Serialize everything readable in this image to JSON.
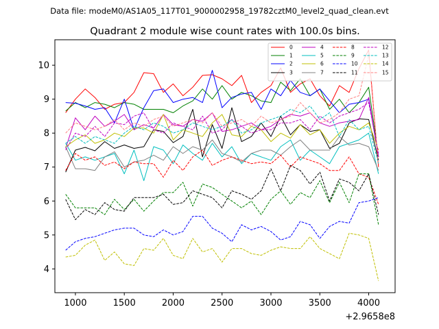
{
  "chart_data": {
    "type": "line",
    "suptitle": "Data file: modeM0/AS1A05_117T01_9000002958_19782cztM0_level2_quad_clean.evt",
    "title": "Quadrant 2 module wise count rates with 100.0s bins.",
    "xlabel": "",
    "ylabel": "",
    "x_offset_label": "+2.9658e8",
    "xlim": [
      790,
      4270
    ],
    "ylim": [
      3.3,
      10.75
    ],
    "x_ticks": [
      1000,
      1500,
      2000,
      2500,
      3000,
      3500,
      4000
    ],
    "y_ticks": [
      4,
      5,
      6,
      7,
      8,
      9,
      10
    ],
    "legend_position": "top-right",
    "x": [
      900,
      1000,
      1100,
      1200,
      1300,
      1400,
      1500,
      1600,
      1700,
      1800,
      1900,
      2000,
      2100,
      2200,
      2300,
      2400,
      2500,
      2600,
      2700,
      2800,
      2900,
      3000,
      3100,
      3200,
      3300,
      3400,
      3500,
      3600,
      3700,
      3800,
      3900,
      4000,
      4100
    ],
    "series": [
      {
        "name": "0",
        "color": "#ff0000",
        "dash": "solid",
        "values": [
          8.6,
          9.0,
          9.3,
          9.05,
          8.7,
          8.85,
          8.9,
          9.2,
          9.78,
          9.75,
          9.2,
          9.45,
          9.1,
          9.35,
          9.7,
          9.72,
          9.6,
          9.4,
          9.7,
          8.9,
          9.2,
          9.4,
          9.92,
          9.2,
          9.45,
          9.6,
          9.1,
          8.8,
          9.4,
          9.2,
          9.9,
          10.45,
          7.0
        ]
      },
      {
        "name": "1",
        "color": "#008000",
        "dash": "solid",
        "values": [
          8.65,
          8.9,
          8.75,
          8.9,
          8.85,
          8.75,
          8.9,
          8.85,
          8.7,
          8.7,
          8.7,
          8.6,
          8.8,
          8.95,
          9.3,
          9.0,
          9.4,
          9.0,
          9.2,
          9.1,
          8.95,
          8.9,
          9.5,
          9.25,
          9.6,
          9.1,
          9.3,
          8.7,
          9.0,
          8.6,
          8.9,
          9.35,
          7.3
        ]
      },
      {
        "name": "2",
        "color": "#0000ff",
        "dash": "solid",
        "values": [
          8.9,
          8.88,
          8.8,
          8.7,
          8.75,
          8.3,
          9.0,
          8.1,
          8.75,
          9.25,
          9.3,
          8.9,
          9.0,
          9.05,
          8.9,
          9.85,
          8.75,
          9.05,
          9.15,
          9.2,
          8.7,
          9.3,
          9.1,
          9.55,
          9.2,
          9.1,
          9.3,
          8.95,
          8.6,
          8.85,
          8.9,
          9.0,
          7.3
        ]
      },
      {
        "name": "3",
        "color": "#000000",
        "dash": "solid",
        "values": [
          6.85,
          7.5,
          7.58,
          7.48,
          7.75,
          7.55,
          7.65,
          7.55,
          7.6,
          8.1,
          8.05,
          7.72,
          7.9,
          8.7,
          7.3,
          8.25,
          7.55,
          8.75,
          7.75,
          7.9,
          8.3,
          7.9,
          8.5,
          7.95,
          8.25,
          8.05,
          8.1,
          7.55,
          7.7,
          8.3,
          8.42,
          8.4,
          7.2
        ]
      },
      {
        "name": "4",
        "color": "#bf00bf",
        "dash": "solid",
        "values": [
          7.55,
          8.45,
          8.1,
          8.5,
          8.2,
          8.35,
          8.55,
          8.1,
          8.25,
          8.15,
          8.55,
          8.25,
          8.2,
          8.4,
          8.35,
          8.6,
          8.05,
          8.1,
          8.2,
          8.3,
          8.1,
          8.2,
          8.4,
          8.55,
          8.5,
          8.6,
          8.3,
          8.2,
          8.3,
          8.35,
          8.4,
          9.05,
          7.3
        ]
      },
      {
        "name": "5",
        "color": "#00bfbf",
        "dash": "solid",
        "values": [
          7.7,
          7.2,
          7.3,
          7.2,
          7.3,
          7.4,
          6.8,
          7.5,
          6.6,
          7.6,
          7.5,
          7.1,
          7.65,
          7.4,
          7.2,
          7.7,
          7.3,
          7.6,
          7.1,
          7.4,
          7.3,
          7.2,
          7.6,
          7.8,
          7.2,
          7.5,
          7.3,
          7.1,
          7.6,
          7.7,
          7.8,
          8.0,
          6.8
        ]
      },
      {
        "name": "6",
        "color": "#bfbf00",
        "dash": "solid",
        "values": [
          7.6,
          7.8,
          7.95,
          7.7,
          7.8,
          8.0,
          7.9,
          8.15,
          8.15,
          8.0,
          8.55,
          7.8,
          8.1,
          8.0,
          7.9,
          8.3,
          8.55,
          7.95,
          7.9,
          8.2,
          8.1,
          7.75,
          8.0,
          7.85,
          8.25,
          7.95,
          8.1,
          7.7,
          8.0,
          8.2,
          8.1,
          8.3,
          7.5
        ]
      },
      {
        "name": "7",
        "color": "#808080",
        "dash": "solid",
        "values": [
          7.6,
          6.95,
          6.95,
          6.9,
          7.3,
          7.45,
          7.0,
          7.15,
          7.2,
          7.35,
          7.2,
          7.6,
          7.4,
          7.6,
          7.5,
          7.8,
          7.4,
          7.3,
          7.15,
          7.4,
          7.5,
          7.5,
          7.35,
          7.6,
          7.8,
          7.5,
          7.5,
          7.5,
          7.9,
          7.65,
          7.7,
          7.6,
          6.9
        ]
      },
      {
        "name": "8",
        "color": "#ff0000",
        "dash": "dashed",
        "values": [
          6.9,
          7.4,
          7.2,
          7.3,
          7.05,
          7.15,
          6.95,
          7.15,
          7.1,
          7.1,
          6.7,
          7.2,
          6.9,
          7.3,
          7.5,
          7.05,
          7.2,
          7.3,
          7.2,
          7.1,
          7.15,
          7.1,
          7.35,
          7.0,
          7.3,
          7.2,
          7.1,
          6.9,
          6.9,
          7.3,
          6.8,
          6.7,
          5.9
        ]
      },
      {
        "name": "9",
        "color": "#008000",
        "dash": "dashed",
        "values": [
          6.2,
          5.8,
          5.8,
          5.8,
          5.6,
          6.05,
          5.75,
          6.05,
          5.7,
          6.0,
          6.25,
          6.25,
          6.55,
          5.85,
          6.5,
          6.4,
          6.2,
          6.0,
          5.8,
          6.0,
          5.6,
          6.05,
          6.3,
          5.9,
          6.25,
          6.1,
          6.6,
          5.95,
          6.55,
          5.95,
          6.8,
          6.8,
          5.3
        ]
      },
      {
        "name": "10",
        "color": "#0000ff",
        "dash": "dashed",
        "values": [
          4.55,
          4.8,
          4.9,
          4.95,
          5.05,
          5.15,
          5.2,
          5.2,
          5.0,
          4.95,
          5.15,
          5.0,
          5.1,
          5.55,
          5.55,
          5.2,
          5.05,
          4.8,
          5.3,
          5.15,
          5.25,
          5.1,
          4.85,
          4.95,
          5.4,
          5.3,
          4.9,
          5.25,
          5.4,
          5.35,
          5.95,
          6.0,
          6.1
        ]
      },
      {
        "name": "11",
        "color": "#000000",
        "dash": "dashed",
        "values": [
          6.05,
          5.45,
          5.75,
          5.6,
          5.95,
          5.75,
          5.7,
          6.1,
          6.1,
          6.1,
          6.2,
          5.9,
          5.95,
          6.3,
          6.2,
          6.1,
          5.8,
          6.3,
          6.2,
          6.05,
          6.3,
          6.95,
          6.3,
          7.05,
          6.9,
          6.5,
          6.85,
          6.0,
          6.65,
          6.55,
          6.3,
          6.8,
          5.6
        ]
      },
      {
        "name": "12",
        "color": "#bf00bf",
        "dash": "dashed",
        "values": [
          7.5,
          8.0,
          7.9,
          8.2,
          7.9,
          8.3,
          8.25,
          8.5,
          8.6,
          8.1,
          8.0,
          8.3,
          8.2,
          8.1,
          8.5,
          8.0,
          8.1,
          8.4,
          8.2,
          8.0,
          8.1,
          8.1,
          8.3,
          8.3,
          8.4,
          8.1,
          8.5,
          8.3,
          8.5,
          8.6,
          8.7,
          8.9,
          7.4
        ]
      },
      {
        "name": "13",
        "color": "#00bfbf",
        "dash": "dashed",
        "values": [
          7.7,
          7.9,
          7.7,
          7.9,
          7.8,
          7.7,
          8.0,
          8.2,
          8.1,
          8.3,
          8.2,
          8.0,
          8.1,
          8.3,
          8.2,
          8.1,
          8.2,
          8.4,
          8.0,
          8.1,
          8.3,
          8.4,
          8.5,
          8.7,
          8.6,
          8.8,
          8.4,
          8.6,
          7.9,
          8.4,
          8.1,
          8.2,
          7.1
        ]
      },
      {
        "name": "14",
        "color": "#bfbf00",
        "dash": "dashed",
        "values": [
          4.35,
          4.4,
          4.7,
          4.85,
          4.25,
          4.5,
          4.15,
          4.1,
          4.6,
          4.55,
          4.9,
          4.4,
          4.3,
          4.9,
          4.5,
          4.6,
          4.2,
          4.6,
          4.6,
          4.45,
          4.4,
          4.55,
          4.65,
          4.6,
          4.6,
          4.95,
          4.6,
          4.45,
          4.3,
          5.05,
          5.0,
          4.9,
          3.65
        ]
      },
      {
        "name": "15",
        "color": "#ff8080",
        "dash": "dashed",
        "values": [
          8.0,
          8.3,
          8.2,
          8.1,
          8.2,
          8.4,
          8.1,
          8.3,
          8.2,
          8.4,
          8.5,
          8.2,
          8.3,
          8.4,
          8.3,
          8.6,
          8.2,
          8.3,
          8.4,
          8.2,
          8.5,
          8.3,
          8.4,
          8.5,
          8.9,
          8.6,
          8.3,
          8.4,
          8.6,
          9.0,
          9.1,
          10.3,
          7.1
        ]
      }
    ]
  }
}
